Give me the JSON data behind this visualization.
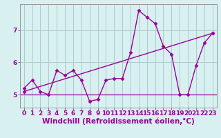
{
  "x": [
    0,
    1,
    2,
    3,
    4,
    5,
    6,
    7,
    8,
    9,
    10,
    11,
    12,
    13,
    14,
    15,
    16,
    17,
    18,
    19,
    20,
    21,
    22,
    23
  ],
  "y_line": [
    5.2,
    5.45,
    5.1,
    5.0,
    5.75,
    5.6,
    5.75,
    5.45,
    4.8,
    4.85,
    5.45,
    5.5,
    5.5,
    6.3,
    7.6,
    7.4,
    7.2,
    6.5,
    6.25,
    5.0,
    5.0,
    5.9,
    6.6,
    6.9
  ],
  "y_trend_start": 5.1,
  "y_trend_end": 6.9,
  "line_color": "#990099",
  "bg_color": "#d8f0f0",
  "grid_color": "#aacccc",
  "xlabel": "Windchill (Refroidissement éolien,°C)",
  "ylim": [
    4.6,
    7.8
  ],
  "xlim": [
    -0.5,
    23.5
  ],
  "yticks": [
    5,
    6,
    7
  ],
  "xticks": [
    0,
    1,
    2,
    3,
    4,
    5,
    6,
    7,
    8,
    9,
    10,
    11,
    12,
    13,
    14,
    15,
    16,
    17,
    18,
    19,
    20,
    21,
    22,
    23
  ],
  "marker": "D",
  "marker_size": 2.5,
  "line_width": 1.0,
  "xlabel_fontsize": 7.5,
  "tick_fontsize": 6.5
}
